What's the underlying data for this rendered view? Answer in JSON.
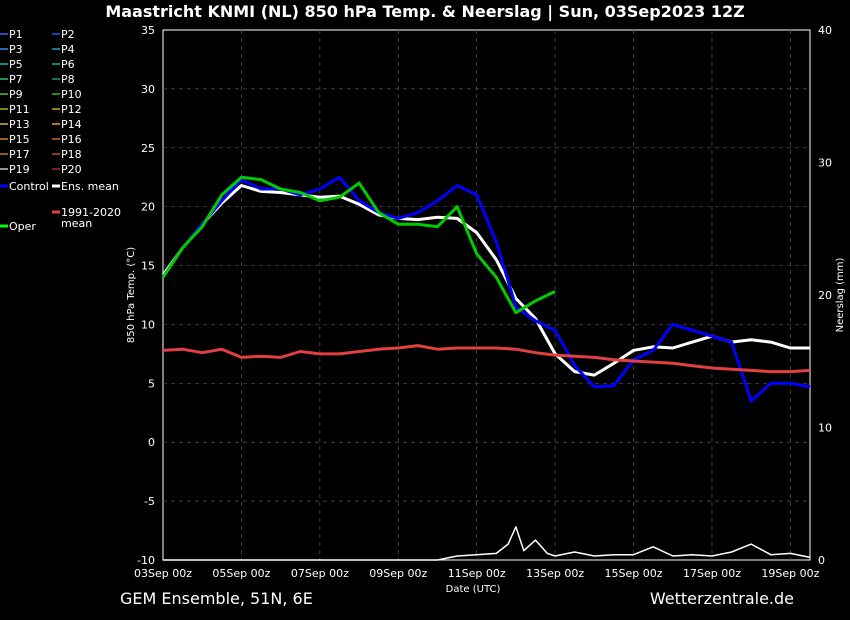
{
  "chart_data": {
    "type": "line",
    "title": "Maastricht KNMI  (NL)  850 hPa Temp. & Neerslag | Sun, 03Sep2023 12Z",
    "xlabel": "Date (UTC)",
    "ylabel": "850 hPa Temp. (°C)",
    "y2label": "Neerslag (mm)",
    "footer_left": "GEM Ensemble, 51N, 6E",
    "footer_right": "Wetterzentrale.de",
    "x_ticks": [
      "03Sep 00z",
      "05Sep 00z",
      "07Sep 00z",
      "09Sep 00z",
      "11Sep 00z",
      "13Sep 00z",
      "15Sep 00z",
      "17Sep 00z",
      "19Sep 00z"
    ],
    "x_range_days": [
      0,
      16.5
    ],
    "ylim": [
      -10,
      35
    ],
    "y_ticks": [
      -10,
      -5,
      0,
      5,
      10,
      15,
      20,
      25,
      30,
      35
    ],
    "y2lim": [
      0,
      40
    ],
    "y2_ticks": [
      0,
      10,
      20,
      30,
      40
    ],
    "grid": true,
    "legend_position": "left-outside",
    "legend": [
      {
        "label": "P1",
        "color": "#4060ff"
      },
      {
        "label": "P2",
        "color": "#2050ff"
      },
      {
        "label": "P3",
        "color": "#3090e0"
      },
      {
        "label": "P4",
        "color": "#20a0c0"
      },
      {
        "label": "P5",
        "color": "#20b0b0"
      },
      {
        "label": "P6",
        "color": "#20b080"
      },
      {
        "label": "P7",
        "color": "#30c070"
      },
      {
        "label": "P8",
        "color": "#20a050"
      },
      {
        "label": "P9",
        "color": "#50c030"
      },
      {
        "label": "P10",
        "color": "#40b020"
      },
      {
        "label": "P11",
        "color": "#b0b020"
      },
      {
        "label": "P12",
        "color": "#c0a030"
      },
      {
        "label": "P13",
        "color": "#d0b040"
      },
      {
        "label": "P14",
        "color": "#e0a030"
      },
      {
        "label": "P15",
        "color": "#d08030"
      },
      {
        "label": "P16",
        "color": "#c07030"
      },
      {
        "label": "P17",
        "color": "#d07040"
      },
      {
        "label": "P18",
        "color": "#b05030"
      },
      {
        "label": "P19",
        "color": "#e0c0a0"
      },
      {
        "label": "P20",
        "color": "#a03020"
      },
      {
        "label": "Control",
        "color": "#0000ff"
      },
      {
        "label": "Ens. mean",
        "color": "#ffffff"
      },
      {
        "label": "1991-2020\nmean",
        "color": "#e04040"
      },
      {
        "label": "Oper",
        "color": "#00ff00"
      }
    ],
    "series": [
      {
        "name": "Ens. mean",
        "color": "#ffffff",
        "x": [
          0,
          0.5,
          1,
          1.5,
          2,
          2.5,
          3,
          3.5,
          4,
          4.5,
          5,
          5.5,
          6,
          6.5,
          7,
          7.5,
          8,
          8.5,
          9,
          9.5,
          10,
          10.5,
          11,
          11.5,
          12,
          12.5,
          13,
          13.5,
          14,
          14.5,
          15,
          15.5,
          16,
          16.5
        ],
        "y": [
          14.2,
          16.5,
          18.5,
          20.3,
          21.8,
          21.3,
          21.2,
          21.0,
          20.8,
          20.9,
          20.2,
          19.3,
          19.0,
          18.9,
          19.1,
          19.0,
          17.8,
          15.5,
          12.2,
          10.5,
          7.5,
          6.0,
          5.7,
          6.7,
          7.8,
          8.1,
          8.0,
          8.5,
          9.0,
          8.5,
          8.7,
          8.5,
          8.0,
          8.0
        ]
      },
      {
        "name": "Control",
        "color": "#0000ff",
        "x": [
          0,
          0.5,
          1,
          1.5,
          2,
          2.5,
          3,
          3.5,
          4,
          4.5,
          5,
          5.5,
          6,
          6.5,
          7,
          7.5,
          8,
          8.5,
          9,
          9.5,
          10,
          10.5,
          11,
          11.5,
          12,
          12.5,
          13,
          13.5,
          14,
          14.5,
          15,
          15.5,
          16,
          16.5
        ],
        "y": [
          14.0,
          16.5,
          18.5,
          20.5,
          22.3,
          21.5,
          21.5,
          21.0,
          21.5,
          22.5,
          20.5,
          19.5,
          19.0,
          19.5,
          20.5,
          21.8,
          21.0,
          17.0,
          11.5,
          10.3,
          9.5,
          6.5,
          4.7,
          4.8,
          7.0,
          7.8,
          10.0,
          9.5,
          9.0,
          8.5,
          3.5,
          5.0,
          5.0,
          4.7
        ]
      },
      {
        "name": "Oper",
        "color": "#00cc00",
        "x": [
          0,
          0.5,
          1,
          1.5,
          2,
          2.5,
          3,
          3.5,
          4,
          4.5,
          5,
          5.5,
          6,
          6.5,
          7,
          7.5,
          8,
          8.5,
          9,
          9.5,
          10
        ],
        "y": [
          14.0,
          16.5,
          18.3,
          21.0,
          22.5,
          22.3,
          21.5,
          21.2,
          20.5,
          20.8,
          22.0,
          19.5,
          18.5,
          18.5,
          18.3,
          20.0,
          16.0,
          14.0,
          11.0,
          12.0,
          12.8
        ]
      },
      {
        "name": "1991-2020 mean",
        "color": "#e04040",
        "x": [
          0,
          0.5,
          1,
          1.5,
          2,
          2.5,
          3,
          3.5,
          4,
          4.5,
          5,
          5.5,
          6,
          6.5,
          7,
          7.5,
          8,
          8.5,
          9,
          9.5,
          10,
          10.5,
          11,
          11.5,
          12,
          12.5,
          13,
          13.5,
          14,
          14.5,
          15,
          15.5,
          16,
          16.5
        ],
        "y": [
          7.8,
          7.9,
          7.6,
          7.9,
          7.2,
          7.3,
          7.2,
          7.7,
          7.5,
          7.5,
          7.7,
          7.9,
          8.0,
          8.2,
          7.9,
          8.0,
          8.0,
          8.0,
          7.9,
          7.6,
          7.4,
          7.3,
          7.2,
          7.0,
          6.9,
          6.8,
          6.7,
          6.5,
          6.3,
          6.2,
          6.1,
          6.0,
          6.0,
          6.1
        ]
      },
      {
        "name": "Ens. mean precip",
        "color": "#ffffff",
        "axis": "y2",
        "x": [
          0,
          1,
          2,
          3,
          4,
          5,
          6,
          7,
          7.5,
          8,
          8.5,
          8.8,
          9,
          9.2,
          9.5,
          9.8,
          10,
          10.5,
          11,
          11.5,
          12,
          12.5,
          13,
          13.5,
          14,
          14.5,
          15,
          15.5,
          16,
          16.5
        ],
        "y": [
          0,
          0,
          0,
          0,
          0,
          0,
          0,
          0,
          0.3,
          0.4,
          0.5,
          1.2,
          2.5,
          0.7,
          1.5,
          0.5,
          0.3,
          0.6,
          0.3,
          0.4,
          0.4,
          1.0,
          0.3,
          0.4,
          0.3,
          0.6,
          1.2,
          0.4,
          0.5,
          0.2
        ]
      }
    ],
    "member_color_order": [
      "#4060ff",
      "#2050ff",
      "#3090e0",
      "#20a0c0",
      "#20b0b0",
      "#20b080",
      "#30c070",
      "#20a050",
      "#50c030",
      "#40b020",
      "#b0b020",
      "#c0a030",
      "#d0b040",
      "#e0a030",
      "#d08030",
      "#c07030",
      "#d07040",
      "#b05030",
      "#e0c0a0",
      "#a03020"
    ]
  }
}
